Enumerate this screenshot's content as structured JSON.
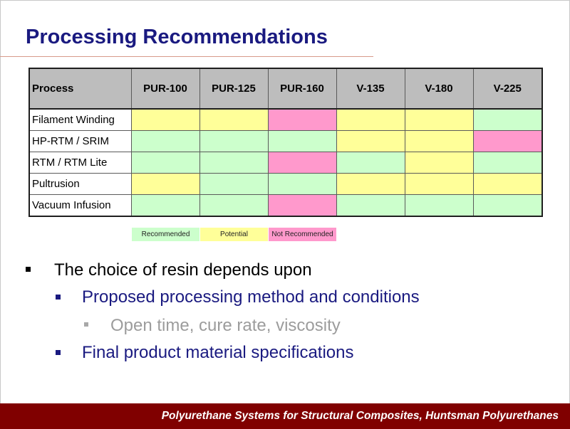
{
  "title": "Processing Recommendations",
  "table": {
    "header_process": "Process",
    "columns": [
      "PUR-100",
      "PUR-125",
      "PUR-160",
      "V-135",
      "V-180",
      "V-225"
    ],
    "rows": [
      {
        "name": "Filament Winding",
        "ratings": [
          "potential",
          "potential",
          "not_recommended",
          "potential",
          "potential",
          "recommended"
        ]
      },
      {
        "name": "HP-RTM / SRIM",
        "ratings": [
          "recommended",
          "recommended",
          "recommended",
          "potential",
          "potential",
          "not_recommended"
        ]
      },
      {
        "name": "RTM / RTM Lite",
        "ratings": [
          "recommended",
          "recommended",
          "not_recommended",
          "recommended",
          "potential",
          "recommended"
        ]
      },
      {
        "name": "Pultrusion",
        "ratings": [
          "potential",
          "recommended",
          "recommended",
          "potential",
          "potential",
          "potential"
        ]
      },
      {
        "name": "Vacuum Infusion",
        "ratings": [
          "recommended",
          "recommended",
          "not_recommended",
          "recommended",
          "recommended",
          "recommended"
        ]
      }
    ]
  },
  "legend": {
    "recommended": "Recommended",
    "potential": "Potential",
    "not_recommended": "Not Recommended"
  },
  "colors": {
    "recommended": "#ccffcc",
    "potential": "#ffff99",
    "not_recommended": "#ff99cc",
    "title": "#1a1a80",
    "footer_bg": "#800000"
  },
  "bullets": {
    "level1": "The choice of resin depends upon",
    "level2a": "Proposed processing method and conditions",
    "level3": "Open time, cure rate, viscosity",
    "level2b": "Final product material specifications"
  },
  "footer": "Polyurethane Systems for Structural Composites, Huntsman Polyurethanes"
}
